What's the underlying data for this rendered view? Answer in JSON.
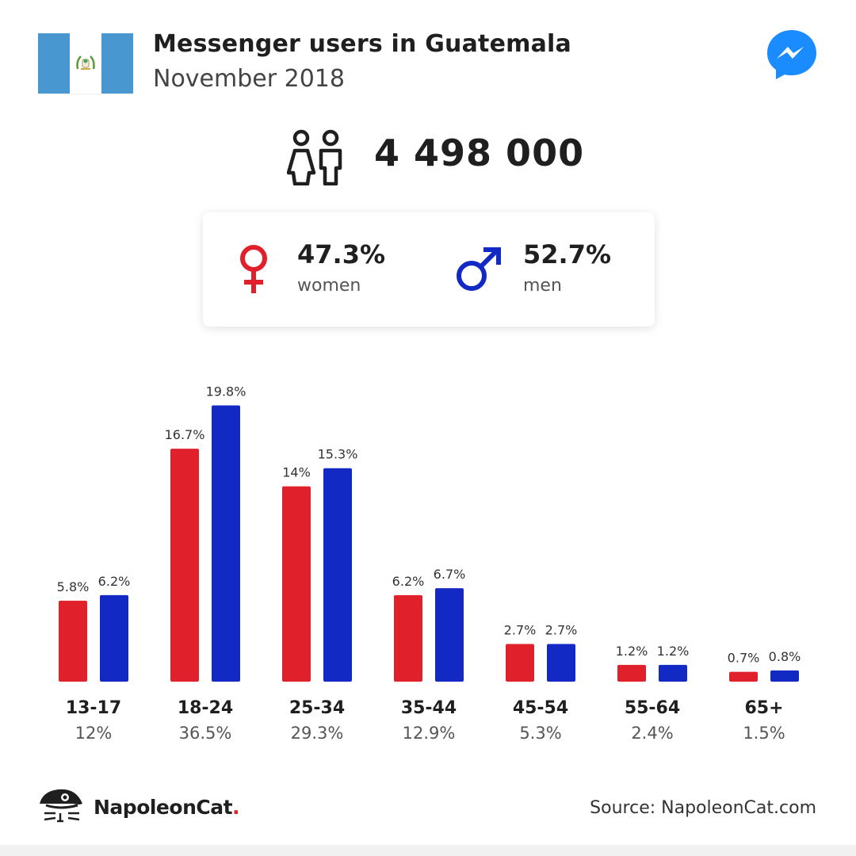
{
  "header": {
    "title": "Messenger users in Guatemala",
    "subtitle": "November 2018",
    "flag_icon": "guatemala-flag",
    "app_icon": "messenger-icon"
  },
  "total": {
    "value": "4 498 000",
    "icon": "people-icon"
  },
  "gender": {
    "women": {
      "pct": "47.3%",
      "label": "women",
      "color": "#e0202a",
      "icon": "female-symbol-icon"
    },
    "men": {
      "pct": "52.7%",
      "label": "men",
      "color": "#1229c4",
      "icon": "male-symbol-icon"
    }
  },
  "chart_data": {
    "type": "bar",
    "categories": [
      "13-17",
      "18-24",
      "25-34",
      "35-44",
      "45-54",
      "55-64",
      "65+"
    ],
    "category_totals": [
      "12%",
      "36.5%",
      "29.3%",
      "12.9%",
      "5.3%",
      "2.4%",
      "1.5%"
    ],
    "series": [
      {
        "name": "women",
        "color": "#e0202a",
        "values": [
          5.8,
          16.7,
          14,
          6.2,
          2.7,
          1.2,
          0.7
        ],
        "labels": [
          "5.8%",
          "16.7%",
          "14%",
          "6.2%",
          "2.7%",
          "1.2%",
          "0.7%"
        ]
      },
      {
        "name": "men",
        "color": "#1229c4",
        "values": [
          6.2,
          19.8,
          15.3,
          6.7,
          2.7,
          1.2,
          0.8
        ],
        "labels": [
          "6.2%",
          "19.8%",
          "15.3%",
          "6.7%",
          "2.7%",
          "1.2%",
          "0.8%"
        ]
      }
    ],
    "ylim": [
      0,
      20
    ]
  },
  "footer": {
    "brand_name": "NapoleonCat",
    "brand_dot": ".",
    "source": "Source: NapoleonCat.com"
  }
}
